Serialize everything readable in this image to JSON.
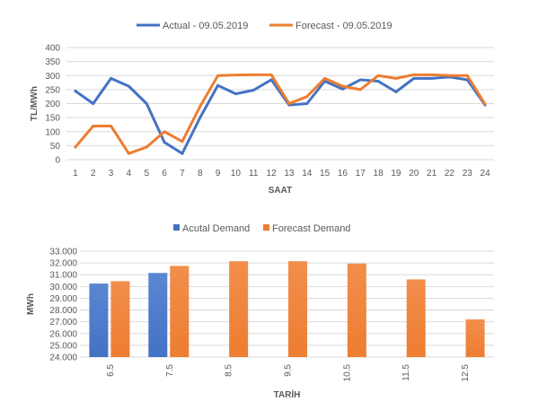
{
  "chart_data": [
    {
      "type": "line",
      "title": "",
      "xlabel": "SAAT",
      "ylabel": "TL/MWh",
      "ylim": [
        0,
        400
      ],
      "y_ticks": [
        0,
        50,
        100,
        150,
        200,
        250,
        300,
        350,
        400
      ],
      "grid": true,
      "legend_position": "top",
      "categories": [
        "1",
        "2",
        "3",
        "4",
        "5",
        "6",
        "7",
        "8",
        "9",
        "10",
        "11",
        "12",
        "13",
        "14",
        "15",
        "16",
        "17",
        "18",
        "19",
        "20",
        "21",
        "22",
        "23",
        "24"
      ],
      "series": [
        {
          "name": "Actual - 09.05.2019",
          "color": "#4472C4",
          "values": [
            245,
            200,
            290,
            262,
            200,
            62,
            22,
            150,
            265,
            235,
            248,
            285,
            195,
            200,
            280,
            252,
            285,
            280,
            242,
            290,
            290,
            295,
            285,
            195
          ]
        },
        {
          "name": "Forecast - 09.05.2019",
          "color": "#ED7D31",
          "values": [
            45,
            120,
            120,
            22,
            45,
            100,
            65,
            190,
            300,
            302,
            303,
            303,
            200,
            225,
            290,
            262,
            250,
            300,
            290,
            303,
            303,
            300,
            300,
            198
          ]
        }
      ]
    },
    {
      "type": "bar",
      "title": "",
      "xlabel": "TARİH",
      "ylabel": "MWh",
      "ylim": [
        24000,
        33000
      ],
      "y_ticks": [
        24000,
        25000,
        26000,
        27000,
        28000,
        29000,
        30000,
        31000,
        32000,
        33000
      ],
      "y_tick_labels": [
        "24.000",
        "25.000",
        "26.000",
        "27.000",
        "28.000",
        "29.000",
        "30.000",
        "31.000",
        "32.000",
        "33.000"
      ],
      "grid": true,
      "legend_position": "top",
      "categories": [
        "6.5",
        "7.5",
        "8.5",
        "9.5",
        "10.5",
        "11.5",
        "12.5"
      ],
      "series": [
        {
          "name": "Acutal Demand",
          "color": "#4472C4",
          "values": [
            30250,
            31150,
            null,
            null,
            null,
            null,
            null
          ]
        },
        {
          "name": "Forecast Demand",
          "color": "#ED7D31",
          "values": [
            30450,
            31750,
            32150,
            32150,
            31950,
            30600,
            27200
          ]
        }
      ]
    }
  ]
}
